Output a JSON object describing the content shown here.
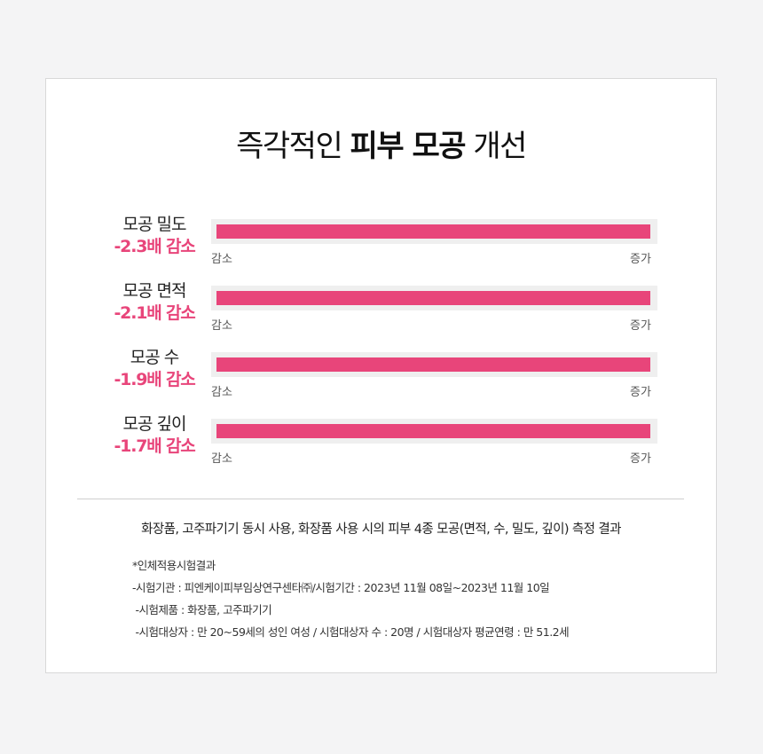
{
  "title": {
    "part1": "즉각적인",
    "highlight": "피부 모공",
    "part2": "개선"
  },
  "chart_data": {
    "type": "bar",
    "orientation": "horizontal",
    "categories": [
      "모공 밀도",
      "모공 면적",
      "모공 수",
      "모공 깊이"
    ],
    "value_labels": [
      "-2.3배 감소",
      "-2.1배 감소",
      "-1.9배 감소",
      "-1.7배 감소"
    ],
    "values": [
      1.0,
      1.0,
      1.0,
      1.0
    ],
    "axis_min_label": "감소",
    "axis_max_label": "증가",
    "color": "#e8457a"
  },
  "summary": "화장품, 고주파기기 동시 사용, 화장품 사용 시의 피부 4종 모공(면적, 수, 밀도, 깊이) 측정 결과",
  "notes": [
    "*인체적용시험결과",
    "-시험기관 : 피엔케이피부임상연구센타㈜/시험기간 : 2023년 11월 08일~2023년 11월 10일",
    " -시험제품 : 화장품, 고주파기기",
    " -시험대상자 : 만 20~59세의 성인 여성 / 시험대상자 수 : 20명 / 시험대상자 평균연령 : 만 51.2세"
  ]
}
